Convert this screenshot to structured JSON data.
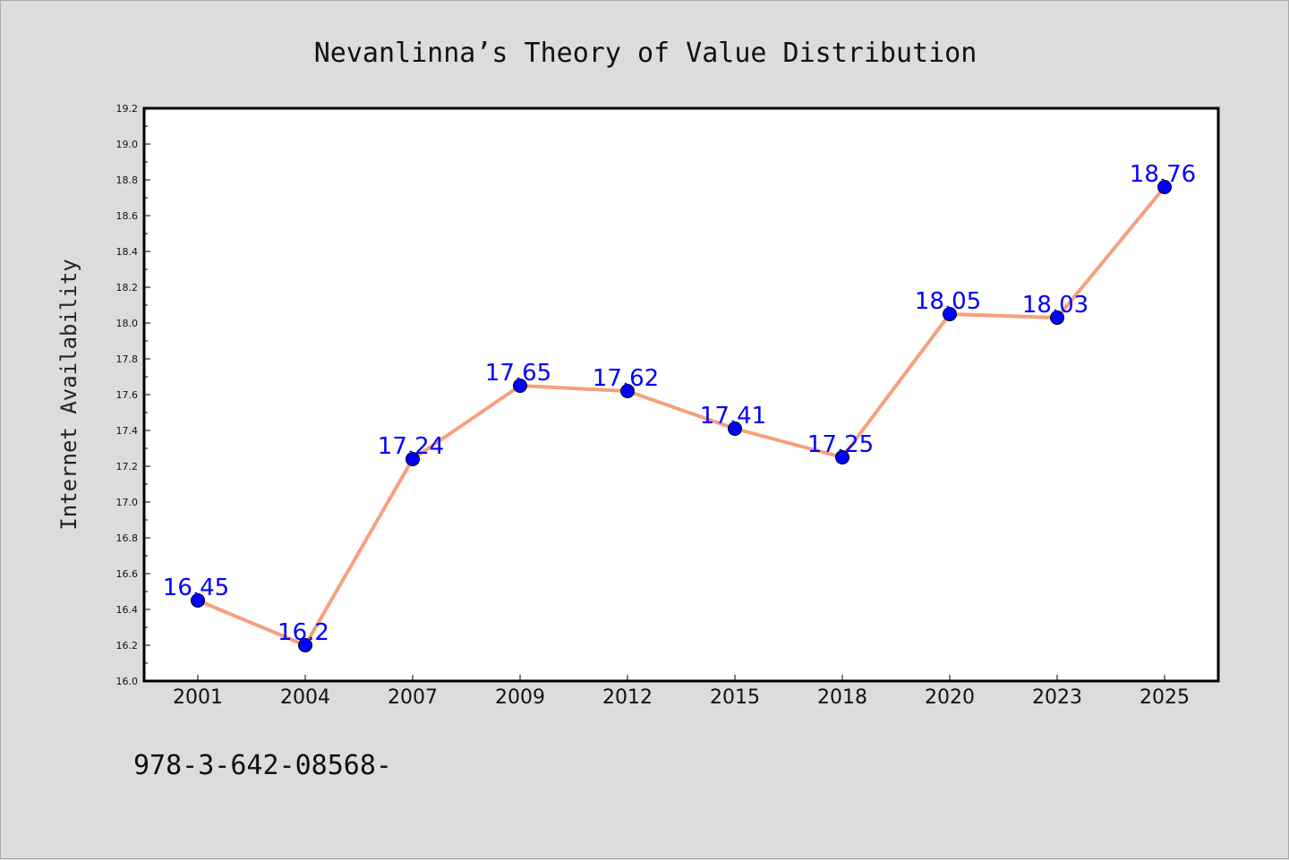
{
  "chart_data": {
    "type": "line",
    "title": "Nevanlinna’s Theory of Value Distribution",
    "xlabel": "",
    "ylabel": "Internet Availability",
    "categories": [
      "2001",
      "2004",
      "2007",
      "2009",
      "2012",
      "2015",
      "2018",
      "2020",
      "2023",
      "2025"
    ],
    "series": [
      {
        "values": [
          16.45,
          16.2,
          17.24,
          17.65,
          17.62,
          17.41,
          17.25,
          18.05,
          18.03,
          18.76
        ],
        "labels": [
          "16.45",
          "16.2",
          "17.24",
          "17.65",
          "17.62",
          "17.41",
          "17.25",
          "18.05",
          "18.03",
          "18.76"
        ],
        "line_color": "#f5a07e",
        "marker_color": "#0000ff",
        "label_color": "#0000ff"
      }
    ],
    "ylim": [
      16.0,
      19.2
    ],
    "yticks": [
      "16.0",
      "16.2",
      "16.4",
      "16.6",
      "16.8",
      "17.0",
      "17.2",
      "17.4",
      "17.6",
      "17.8",
      "18.0",
      "18.2",
      "18.4",
      "18.6",
      "18.8",
      "19.0",
      "19.2"
    ],
    "grid": false,
    "legend": false
  },
  "footer": {
    "text": "978-3-642-08568-"
  },
  "colors": {
    "background": "#dcdcdc",
    "plot_area": "#ffffff"
  }
}
